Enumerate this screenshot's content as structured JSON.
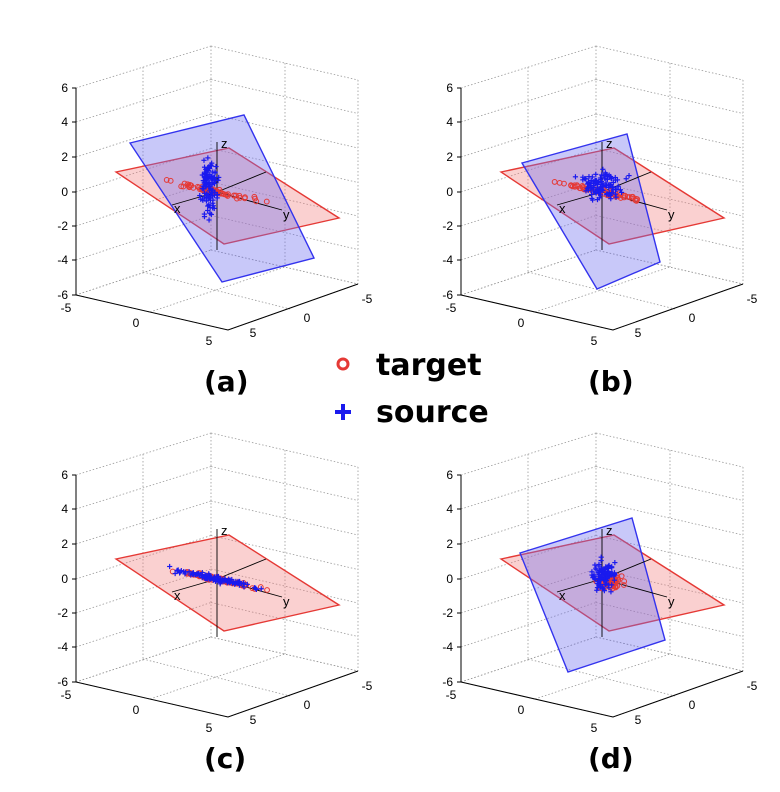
{
  "chart_data": [
    {
      "type": "scatter",
      "panel": "(a)",
      "axis_labels": {
        "x": "x",
        "y": "y",
        "z": "z"
      },
      "zticks": [
        "6",
        "4",
        "2",
        "0",
        "-2",
        "-4",
        "-6"
      ],
      "xticks": [
        "-5",
        "0",
        "5"
      ],
      "yticks": [
        "-5",
        "0",
        "5"
      ],
      "zlim": [
        -6,
        6
      ],
      "xlim": [
        -5,
        5
      ],
      "ylim": [
        -5,
        5
      ],
      "grid": true,
      "planes": [
        {
          "name": "target",
          "color": "#e53935"
        },
        {
          "name": "source",
          "color": "#3333ee"
        }
      ],
      "source_orientation": "tilted-steep",
      "series": [
        {
          "name": "target",
          "marker": "circle",
          "spread": "along-x-axis"
        },
        {
          "name": "source",
          "marker": "plus",
          "spread": "vertical"
        }
      ]
    },
    {
      "type": "scatter",
      "panel": "(b)",
      "axis_labels": {
        "x": "x",
        "y": "y",
        "z": "z"
      },
      "zticks": [
        "6",
        "4",
        "2",
        "0",
        "-2",
        "-4",
        "-6"
      ],
      "xticks": [
        "-5",
        "0",
        "5"
      ],
      "yticks": [
        "-5",
        "0",
        "5"
      ],
      "zlim": [
        -6,
        6
      ],
      "xlim": [
        -5,
        5
      ],
      "ylim": [
        -5,
        5
      ],
      "grid": true,
      "planes": [
        {
          "name": "target",
          "color": "#e53935"
        },
        {
          "name": "source",
          "color": "#3333ee"
        }
      ],
      "source_orientation": "tilted-moderate",
      "series": [
        {
          "name": "target",
          "marker": "circle",
          "spread": "along-x-axis"
        },
        {
          "name": "source",
          "marker": "plus",
          "spread": "broad"
        }
      ]
    },
    {
      "type": "scatter",
      "panel": "(c)",
      "axis_labels": {
        "x": "x",
        "y": "y",
        "z": "z"
      },
      "zticks": [
        "6",
        "4",
        "2",
        "0",
        "-2",
        "-4",
        "-6"
      ],
      "xticks": [
        "-5",
        "0",
        "5"
      ],
      "yticks": [
        "-5",
        "0",
        "5"
      ],
      "zlim": [
        -6,
        6
      ],
      "xlim": [
        -5,
        5
      ],
      "ylim": [
        -5,
        5
      ],
      "grid": true,
      "planes": [
        {
          "name": "target",
          "color": "#e53935"
        }
      ],
      "source_orientation": "aligned",
      "series": [
        {
          "name": "target",
          "marker": "circle",
          "spread": "along-x-axis"
        },
        {
          "name": "source",
          "marker": "plus",
          "spread": "along-x-axis"
        }
      ]
    },
    {
      "type": "scatter",
      "panel": "(d)",
      "axis_labels": {
        "x": "x",
        "y": "y",
        "z": "z"
      },
      "zticks": [
        "6",
        "4",
        "2",
        "0",
        "-2",
        "-4",
        "-6"
      ],
      "xticks": [
        "-5",
        "0",
        "5"
      ],
      "yticks": [
        "-5",
        "0",
        "5"
      ],
      "zlim": [
        -6,
        6
      ],
      "xlim": [
        -5,
        5
      ],
      "ylim": [
        -5,
        5
      ],
      "grid": true,
      "planes": [
        {
          "name": "target",
          "color": "#e53935"
        },
        {
          "name": "source",
          "color": "#3333ee"
        }
      ],
      "source_orientation": "tilted-moderate",
      "series": [
        {
          "name": "target",
          "marker": "circle",
          "spread": "compact"
        },
        {
          "name": "source",
          "marker": "plus",
          "spread": "compact-tall"
        }
      ]
    }
  ],
  "legend": {
    "placement": "center",
    "entries": [
      {
        "label": "target",
        "marker": "circle",
        "color": "#e53935"
      },
      {
        "label": "source",
        "marker": "plus",
        "color": "#1a1aee"
      }
    ]
  },
  "captions": [
    "(a)",
    "(b)",
    "(c)",
    "(d)"
  ]
}
